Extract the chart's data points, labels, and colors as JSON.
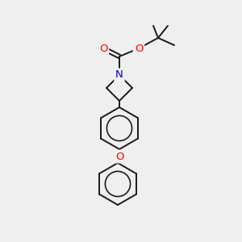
{
  "background_color": "#efefef",
  "bond_color": "#1a1a1a",
  "atom_colors": {
    "O": "#ff0000",
    "N": "#0000cd",
    "C": "#1a1a1a"
  },
  "figsize": [
    3.0,
    3.0
  ],
  "dpi": 100,
  "lw": 1.4,
  "r_hex": 26
}
